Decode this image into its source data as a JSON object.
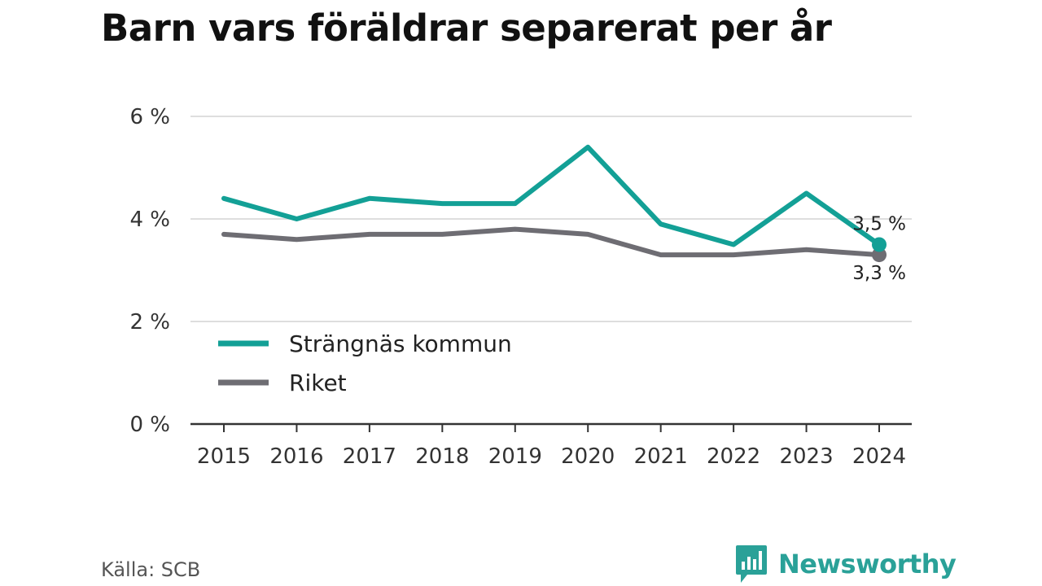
{
  "title": "Barn vars föräldrar separerat per år",
  "source": "Källa: SCB",
  "brand": "Newsworthy",
  "chart_data": {
    "type": "line",
    "x": [
      "2015",
      "2016",
      "2017",
      "2018",
      "2019",
      "2020",
      "2021",
      "2022",
      "2023",
      "2024"
    ],
    "series": [
      {
        "name": "Strängnäs kommun",
        "color": "#13a096",
        "values": [
          4.4,
          4.0,
          4.4,
          4.3,
          4.3,
          5.4,
          3.9,
          3.5,
          4.5,
          3.5
        ],
        "end_label": "3,5 %"
      },
      {
        "name": "Riket",
        "color": "#6e6d73",
        "values": [
          3.7,
          3.6,
          3.7,
          3.7,
          3.8,
          3.7,
          3.3,
          3.3,
          3.4,
          3.3
        ],
        "end_label": "3,3 %"
      }
    ],
    "y_ticks": [
      {
        "value": 0,
        "label": "0 %"
      },
      {
        "value": 2,
        "label": "2 %"
      },
      {
        "value": 4,
        "label": "4 %"
      },
      {
        "value": 6,
        "label": "6 %"
      }
    ],
    "ylim": [
      0,
      6
    ],
    "grid": true,
    "legend": "bottom-left"
  }
}
